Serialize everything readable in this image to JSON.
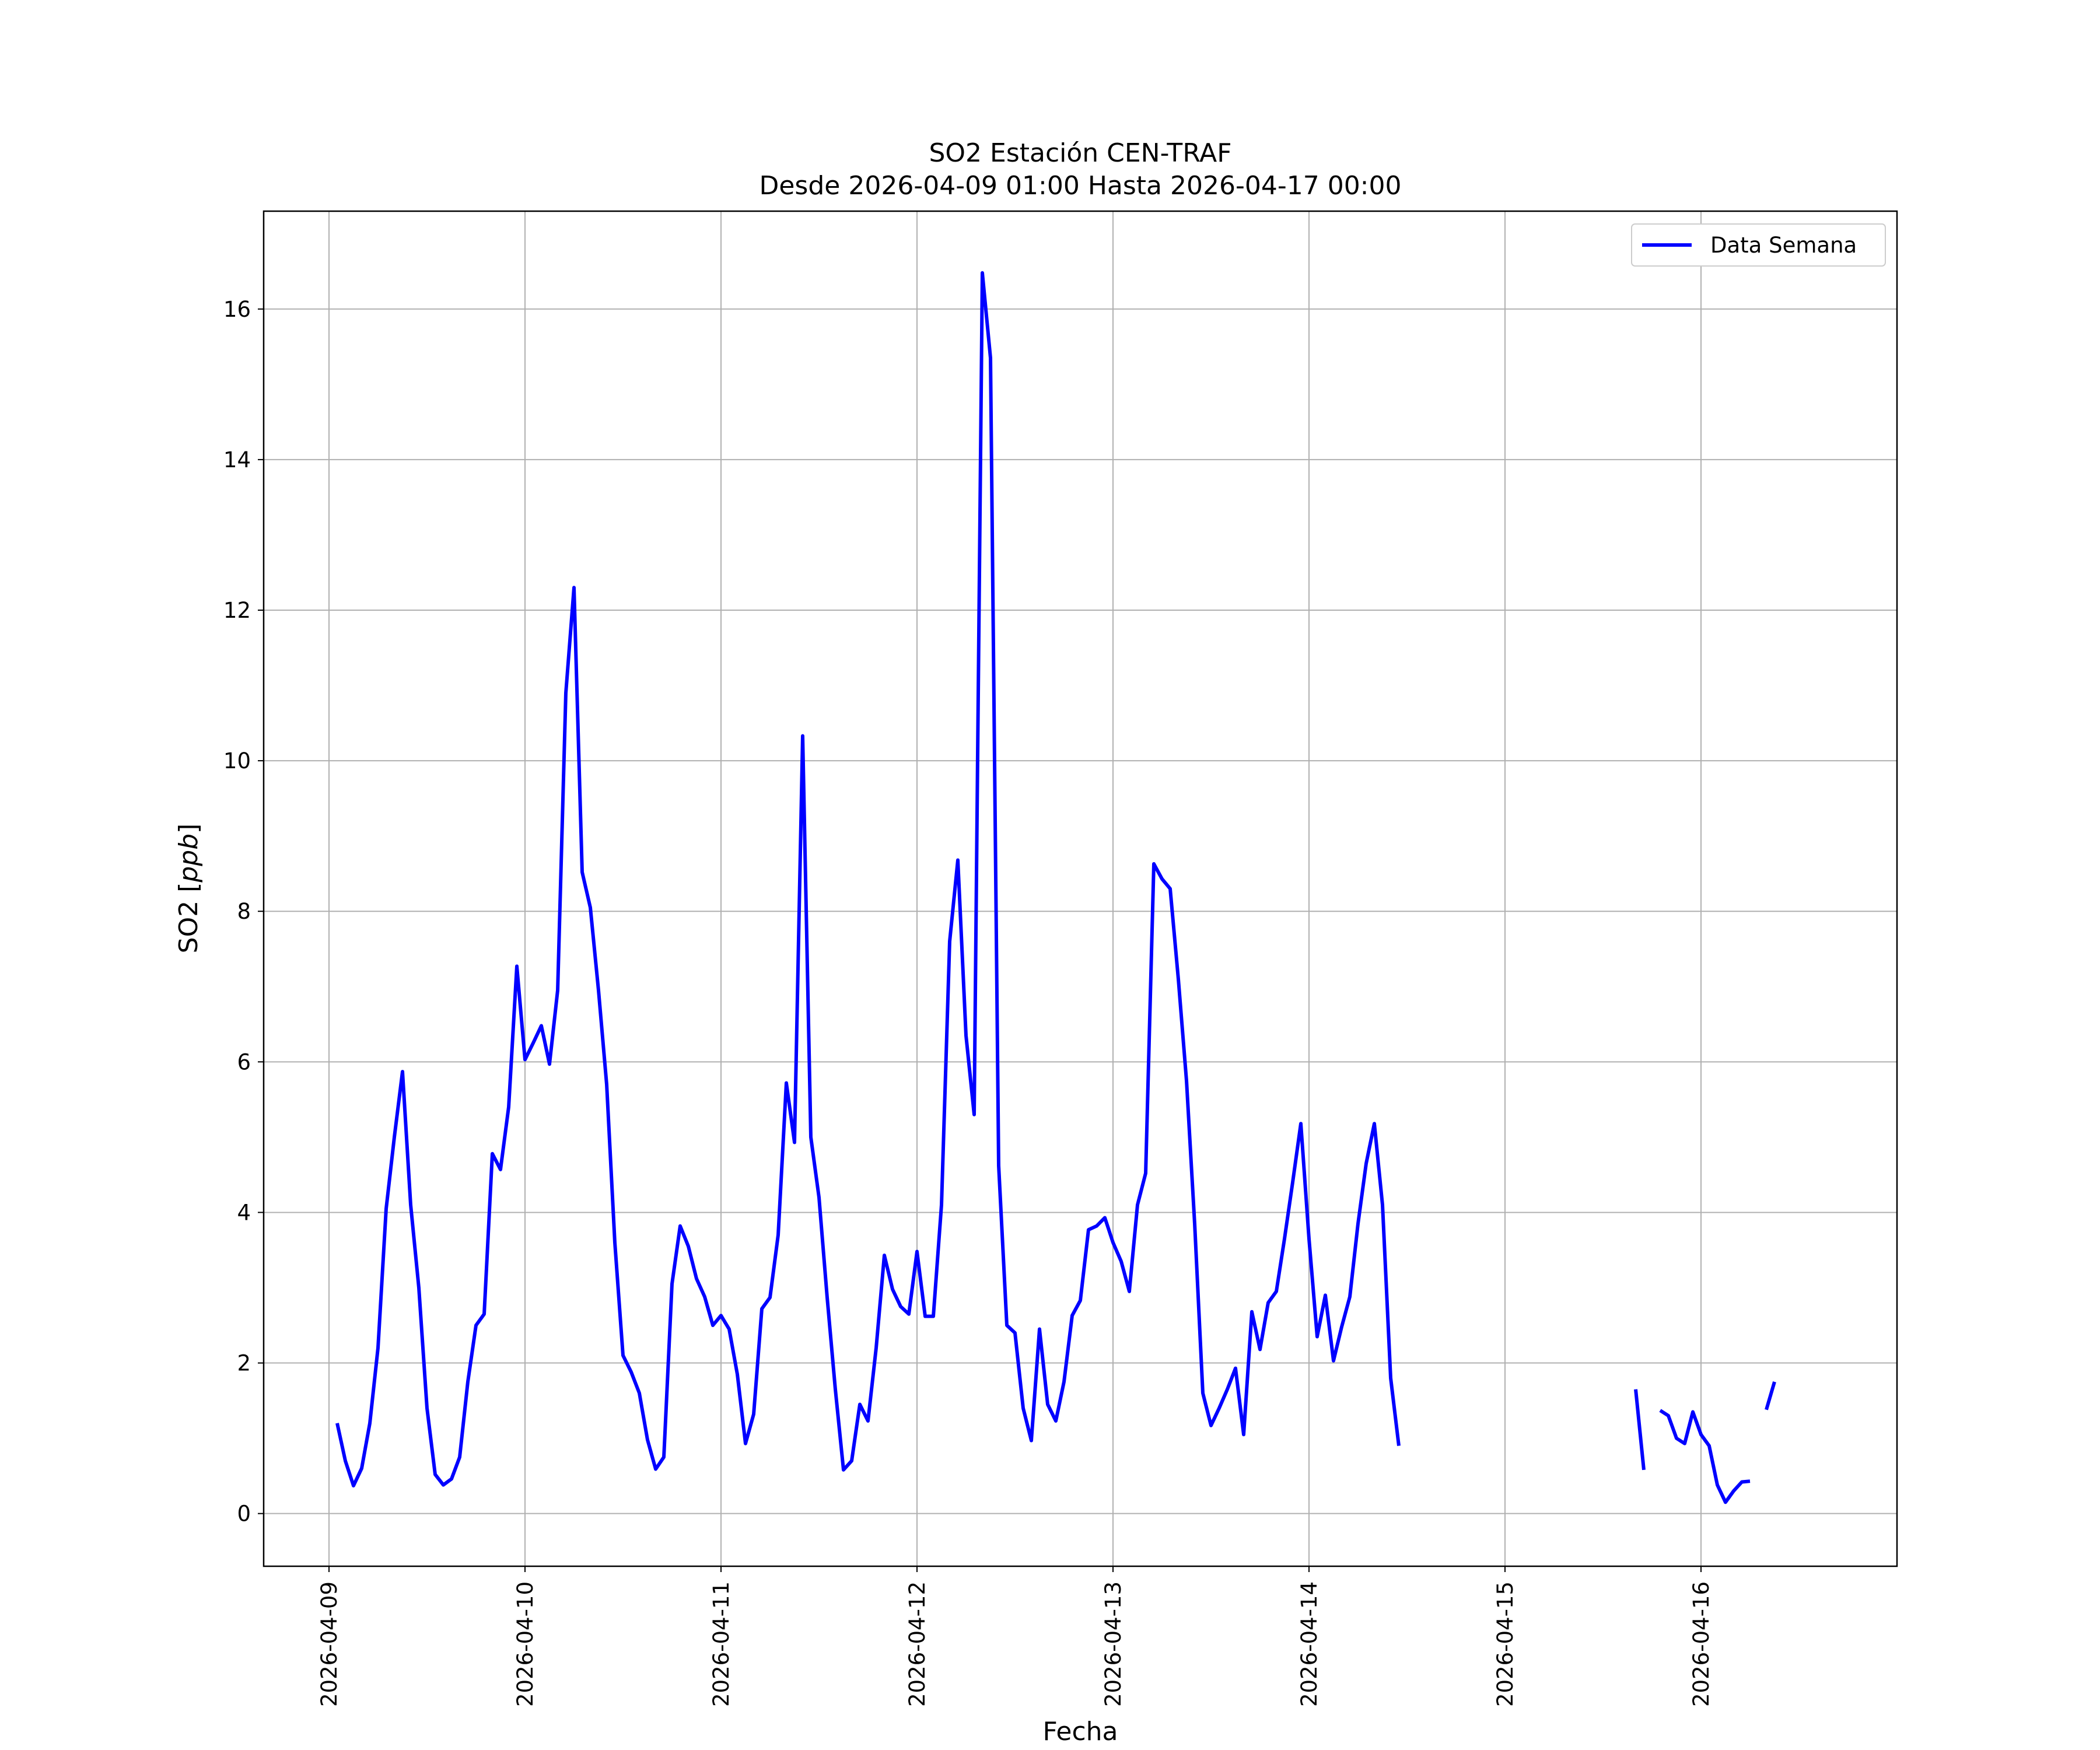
{
  "chart_data": {
    "type": "line",
    "title": "SO2 Estación CEN-TRAF",
    "subtitle": "Desde 2026-04-09 01:00 Hasta 2026-04-17 00:00",
    "xlabel": "Fecha",
    "ylabel": "SO2 [ppb]",
    "ylim": [
      -0.7,
      17.3
    ],
    "xlim": [
      "2026-04-08 16:00",
      "2026-04-17 00:00"
    ],
    "grid": true,
    "legend_position": "top-right",
    "x_ticks": [
      "2026-04-09",
      "2026-04-10",
      "2026-04-11",
      "2026-04-12",
      "2026-04-13",
      "2026-04-14",
      "2026-04-15",
      "2026-04-16"
    ],
    "y_ticks": [
      "0",
      "2",
      "4",
      "6",
      "8",
      "10",
      "12",
      "14",
      "16"
    ],
    "series": [
      {
        "name": "Data Semana",
        "color": "#0000ff",
        "points": [
          [
            "2026-04-09 01:00",
            1.2
          ],
          [
            "2026-04-09 02:00",
            0.7
          ],
          [
            "2026-04-09 03:00",
            0.37
          ],
          [
            "2026-04-09 04:00",
            0.6
          ],
          [
            "2026-04-09 05:00",
            1.2
          ],
          [
            "2026-04-09 06:00",
            2.2
          ],
          [
            "2026-04-09 07:00",
            4.05
          ],
          [
            "2026-04-09 08:00",
            5.0
          ],
          [
            "2026-04-09 09:00",
            5.87
          ],
          [
            "2026-04-09 10:00",
            4.1
          ],
          [
            "2026-04-09 11:00",
            3.0
          ],
          [
            "2026-04-09 12:00",
            1.4
          ],
          [
            "2026-04-09 13:00",
            0.52
          ],
          [
            "2026-04-09 14:00",
            0.38
          ],
          [
            "2026-04-09 15:00",
            0.46
          ],
          [
            "2026-04-09 16:00",
            0.75
          ],
          [
            "2026-04-09 17:00",
            1.75
          ],
          [
            "2026-04-09 18:00",
            2.5
          ],
          [
            "2026-04-09 19:00",
            2.65
          ],
          [
            "2026-04-09 20:00",
            4.78
          ],
          [
            "2026-04-09 21:00",
            4.57
          ],
          [
            "2026-04-09 22:00",
            5.4
          ],
          [
            "2026-04-09 23:00",
            7.27
          ],
          [
            "2026-04-10 00:00",
            6.03
          ],
          [
            "2026-04-10 01:00",
            6.25
          ],
          [
            "2026-04-10 02:00",
            6.48
          ],
          [
            "2026-04-10 03:00",
            5.97
          ],
          [
            "2026-04-10 04:00",
            6.95
          ],
          [
            "2026-04-10 05:00",
            10.9
          ],
          [
            "2026-04-10 06:00",
            12.3
          ],
          [
            "2026-04-10 07:00",
            8.52
          ],
          [
            "2026-04-10 08:00",
            8.05
          ],
          [
            "2026-04-10 09:00",
            6.95
          ],
          [
            "2026-04-10 10:00",
            5.7
          ],
          [
            "2026-04-10 11:00",
            3.6
          ],
          [
            "2026-04-10 12:00",
            2.1
          ],
          [
            "2026-04-10 13:00",
            1.88
          ],
          [
            "2026-04-10 14:00",
            1.6
          ],
          [
            "2026-04-10 15:00",
            0.98
          ],
          [
            "2026-04-10 16:00",
            0.59
          ],
          [
            "2026-04-10 17:00",
            0.75
          ],
          [
            "2026-04-10 18:00",
            3.05
          ],
          [
            "2026-04-10 19:00",
            3.82
          ],
          [
            "2026-04-10 20:00",
            3.55
          ],
          [
            "2026-04-10 21:00",
            3.12
          ],
          [
            "2026-04-10 22:00",
            2.88
          ],
          [
            "2026-04-10 23:00",
            2.5
          ],
          [
            "2026-04-11 00:00",
            2.63
          ],
          [
            "2026-04-11 01:00",
            2.45
          ],
          [
            "2026-04-11 02:00",
            1.85
          ],
          [
            "2026-04-11 03:00",
            0.93
          ],
          [
            "2026-04-11 04:00",
            1.32
          ],
          [
            "2026-04-11 05:00",
            2.72
          ],
          [
            "2026-04-11 06:00",
            2.87
          ],
          [
            "2026-04-11 07:00",
            3.7
          ],
          [
            "2026-04-11 08:00",
            5.72
          ],
          [
            "2026-04-11 09:00",
            4.93
          ],
          [
            "2026-04-11 10:00",
            10.33
          ],
          [
            "2026-04-11 11:00",
            5.0
          ],
          [
            "2026-04-11 12:00",
            4.2
          ],
          [
            "2026-04-11 13:00",
            2.87
          ],
          [
            "2026-04-11 14:00",
            1.65
          ],
          [
            "2026-04-11 15:00",
            0.58
          ],
          [
            "2026-04-11 16:00",
            0.7
          ],
          [
            "2026-04-11 17:00",
            1.45
          ],
          [
            "2026-04-11 18:00",
            1.23
          ],
          [
            "2026-04-11 19:00",
            2.2
          ],
          [
            "2026-04-11 20:00",
            3.43
          ],
          [
            "2026-04-11 21:00",
            2.98
          ],
          [
            "2026-04-11 22:00",
            2.75
          ],
          [
            "2026-04-11 23:00",
            2.65
          ],
          [
            "2026-04-12 00:00",
            3.48
          ],
          [
            "2026-04-12 01:00",
            2.62
          ],
          [
            "2026-04-12 02:00",
            2.62
          ],
          [
            "2026-04-12 03:00",
            4.1
          ],
          [
            "2026-04-12 04:00",
            7.6
          ],
          [
            "2026-04-12 05:00",
            8.68
          ],
          [
            "2026-04-12 06:00",
            6.35
          ],
          [
            "2026-04-12 07:00",
            5.3
          ],
          [
            "2026-04-12 08:00",
            16.48
          ],
          [
            "2026-04-12 09:00",
            15.35
          ],
          [
            "2026-04-12 10:00",
            4.62
          ],
          [
            "2026-04-12 11:00",
            2.5
          ],
          [
            "2026-04-12 12:00",
            2.4
          ],
          [
            "2026-04-12 13:00",
            1.4
          ],
          [
            "2026-04-12 14:00",
            0.97
          ],
          [
            "2026-04-12 15:00",
            2.45
          ],
          [
            "2026-04-12 16:00",
            1.45
          ],
          [
            "2026-04-12 17:00",
            1.23
          ],
          [
            "2026-04-12 18:00",
            1.75
          ],
          [
            "2026-04-12 19:00",
            2.63
          ],
          [
            "2026-04-12 20:00",
            2.83
          ],
          [
            "2026-04-12 21:00",
            3.77
          ],
          [
            "2026-04-12 22:00",
            3.82
          ],
          [
            "2026-04-12 23:00",
            3.93
          ],
          [
            "2026-04-13 00:00",
            3.6
          ],
          [
            "2026-04-13 01:00",
            3.35
          ],
          [
            "2026-04-13 02:00",
            2.95
          ],
          [
            "2026-04-13 03:00",
            4.1
          ],
          [
            "2026-04-13 04:00",
            4.52
          ],
          [
            "2026-04-13 05:00",
            8.63
          ],
          [
            "2026-04-13 06:00",
            8.43
          ],
          [
            "2026-04-13 07:00",
            8.3
          ],
          [
            "2026-04-13 08:00",
            7.1
          ],
          [
            "2026-04-13 09:00",
            5.75
          ],
          [
            "2026-04-13 10:00",
            3.85
          ],
          [
            "2026-04-13 11:00",
            1.6
          ],
          [
            "2026-04-13 12:00",
            1.17
          ],
          [
            "2026-04-13 13:00",
            1.4
          ],
          [
            "2026-04-13 14:00",
            1.65
          ],
          [
            "2026-04-13 15:00",
            1.93
          ],
          [
            "2026-04-13 16:00",
            1.05
          ],
          [
            "2026-04-13 17:00",
            2.68
          ],
          [
            "2026-04-13 18:00",
            2.18
          ],
          [
            "2026-04-13 19:00",
            2.8
          ],
          [
            "2026-04-13 20:00",
            2.95
          ],
          [
            "2026-04-13 21:00",
            3.65
          ],
          [
            "2026-04-13 22:00",
            4.4
          ],
          [
            "2026-04-13 23:00",
            5.18
          ],
          [
            "2026-04-14 00:00",
            3.65
          ],
          [
            "2026-04-14 01:00",
            2.35
          ],
          [
            "2026-04-14 02:00",
            2.9
          ],
          [
            "2026-04-14 03:00",
            2.03
          ],
          [
            "2026-04-14 04:00",
            2.48
          ],
          [
            "2026-04-14 05:00",
            2.88
          ],
          [
            "2026-04-14 06:00",
            3.85
          ],
          [
            "2026-04-14 07:00",
            4.65
          ],
          [
            "2026-04-14 08:00",
            5.18
          ],
          [
            "2026-04-14 09:00",
            4.1
          ],
          [
            "2026-04-14 10:00",
            1.8
          ],
          [
            "2026-04-14 11:00",
            0.9
          ],
          [
            "2026-04-14 12:00",
            null
          ],
          [
            "2026-04-15 15:00",
            null
          ],
          [
            "2026-04-15 16:00",
            1.65
          ],
          [
            "2026-04-15 17:00",
            0.58
          ],
          [
            "2026-04-15 18:00",
            null
          ],
          [
            "2026-04-15 19:00",
            1.37
          ],
          [
            "2026-04-15 20:00",
            1.3
          ],
          [
            "2026-04-15 21:00",
            1.0
          ],
          [
            "2026-04-15 22:00",
            0.93
          ],
          [
            "2026-04-15 23:00",
            1.35
          ],
          [
            "2026-04-16 00:00",
            1.05
          ],
          [
            "2026-04-16 01:00",
            0.9
          ],
          [
            "2026-04-16 02:00",
            0.38
          ],
          [
            "2026-04-16 03:00",
            0.15
          ],
          [
            "2026-04-16 04:00",
            0.3
          ],
          [
            "2026-04-16 05:00",
            0.42
          ],
          [
            "2026-04-16 06:00",
            0.43
          ],
          [
            "2026-04-16 07:00",
            null
          ],
          [
            "2026-04-16 08:00",
            1.38
          ],
          [
            "2026-04-16 09:00",
            1.75
          ]
        ]
      }
    ]
  }
}
